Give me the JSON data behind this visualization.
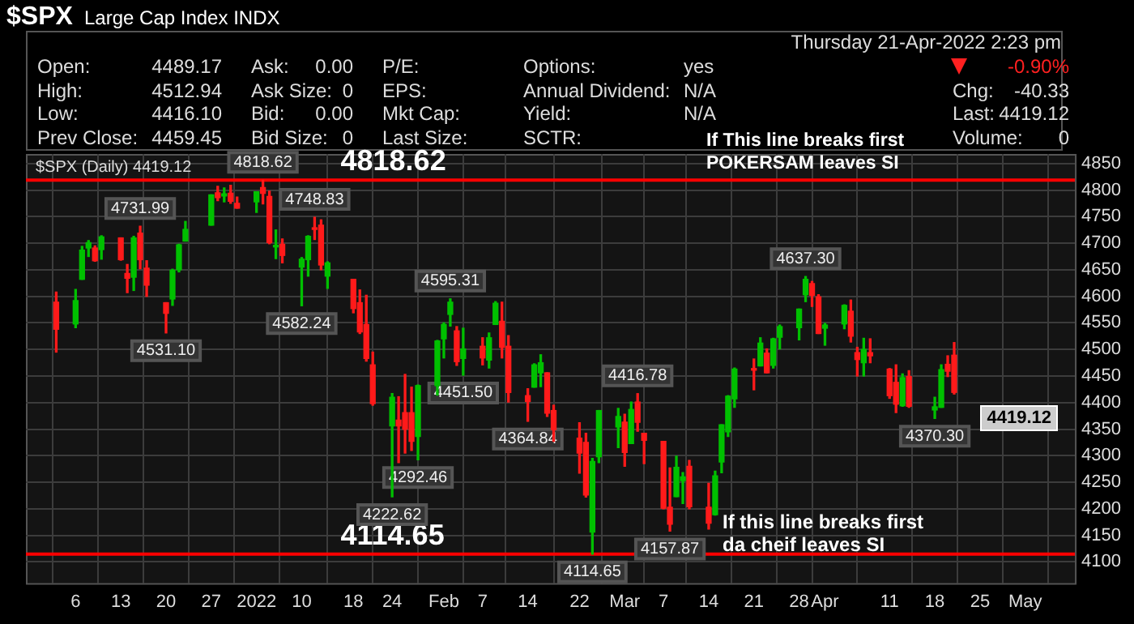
{
  "chart_data": {
    "type": "candlestick",
    "title": "$SPX",
    "subtitle": "Large Cap Index INDX",
    "x": [
      "2021-12-03",
      "2021-12-06",
      "2021-12-07",
      "2021-12-08",
      "2021-12-09",
      "2021-12-10",
      "2021-12-13",
      "2021-12-14",
      "2021-12-15",
      "2021-12-16",
      "2021-12-17",
      "2021-12-20",
      "2021-12-21",
      "2021-12-22",
      "2021-12-23",
      "2021-12-27",
      "2021-12-28",
      "2021-12-29",
      "2021-12-30",
      "2021-12-31",
      "2022-01-03",
      "2022-01-04",
      "2022-01-05",
      "2022-01-06",
      "2022-01-07",
      "2022-01-10",
      "2022-01-11",
      "2022-01-12",
      "2022-01-13",
      "2022-01-14",
      "2022-01-18",
      "2022-01-19",
      "2022-01-20",
      "2022-01-21",
      "2022-01-24",
      "2022-01-25",
      "2022-01-26",
      "2022-01-27",
      "2022-01-28",
      "2022-01-31",
      "2022-02-01",
      "2022-02-02",
      "2022-02-03",
      "2022-02-04",
      "2022-02-07",
      "2022-02-08",
      "2022-02-09",
      "2022-02-10",
      "2022-02-11",
      "2022-02-14",
      "2022-02-15",
      "2022-02-16",
      "2022-02-17",
      "2022-02-18",
      "2022-02-22",
      "2022-02-23",
      "2022-02-24",
      "2022-02-25",
      "2022-02-28",
      "2022-03-01",
      "2022-03-02",
      "2022-03-03",
      "2022-03-04",
      "2022-03-07",
      "2022-03-08",
      "2022-03-09",
      "2022-03-10",
      "2022-03-11",
      "2022-03-14",
      "2022-03-15",
      "2022-03-16",
      "2022-03-17",
      "2022-03-18",
      "2022-03-21",
      "2022-03-22",
      "2022-03-23",
      "2022-03-24",
      "2022-03-25",
      "2022-03-28",
      "2022-03-29",
      "2022-03-30",
      "2022-03-31",
      "2022-04-01",
      "2022-04-04",
      "2022-04-05",
      "2022-04-06",
      "2022-04-07",
      "2022-04-08",
      "2022-04-11",
      "2022-04-12",
      "2022-04-13",
      "2022-04-14",
      "2022-04-18",
      "2022-04-19",
      "2022-04-20",
      "2022-04-21"
    ],
    "ohlc": [
      [
        4589,
        4608,
        4495,
        4538
      ],
      [
        4548,
        4613,
        4541,
        4592
      ],
      [
        4632,
        4694,
        4632,
        4687
      ],
      [
        4691,
        4705,
        4675,
        4701
      ],
      [
        4691,
        4695,
        4666,
        4667
      ],
      [
        4688,
        4714,
        4670,
        4712
      ],
      [
        4710,
        4710,
        4668,
        4669
      ],
      [
        4643,
        4660,
        4607,
        4634
      ],
      [
        4636,
        4713,
        4611,
        4710
      ],
      [
        4719,
        4731.99,
        4652,
        4669
      ],
      [
        4653,
        4667,
        4600,
        4621
      ],
      [
        4588,
        4588,
        4531.1,
        4568
      ],
      [
        4595,
        4651,
        4583,
        4649
      ],
      [
        4650,
        4698,
        4646,
        4697
      ],
      [
        4704,
        4741,
        4704,
        4726
      ],
      [
        4734,
        4791,
        4734,
        4791
      ],
      [
        4795,
        4807,
        4780,
        4786
      ],
      [
        4789,
        4804,
        4778,
        4793
      ],
      [
        4794,
        4809,
        4775,
        4779
      ],
      [
        4775,
        4787,
        4766,
        4766
      ],
      [
        4778,
        4797,
        4758,
        4797
      ],
      [
        4805,
        4818.62,
        4774,
        4794
      ],
      [
        4788,
        4798,
        4699,
        4701
      ],
      [
        4693,
        4725,
        4671,
        4696
      ],
      [
        4698,
        4708,
        4663,
        4677
      ],
      [
        4655,
        4673,
        4582.24,
        4670
      ],
      [
        4669,
        4714,
        4638,
        4713
      ],
      [
        4729,
        4748.83,
        4707,
        4726
      ],
      [
        4734,
        4744,
        4650,
        4659
      ],
      [
        4638,
        4665,
        4615,
        4663
      ],
      [
        4632,
        4632,
        4569,
        4577
      ],
      [
        4588,
        4612,
        4530,
        4533
      ],
      [
        4547,
        4602,
        4478,
        4483
      ],
      [
        4471,
        4495,
        4395,
        4398
      ],
      [
        4356,
        4417,
        4222.62,
        4410
      ],
      [
        4367,
        4411,
        4287,
        4356
      ],
      [
        4381,
        4453,
        4305,
        4350
      ],
      [
        4381,
        4429,
        4310,
        4327
      ],
      [
        4336,
        4433,
        4292.46,
        4432
      ],
      [
        4432,
        4517,
        4414,
        4516
      ],
      [
        4520,
        4550,
        4484,
        4547
      ],
      [
        4566,
        4595.31,
        4544,
        4589
      ],
      [
        4535,
        4543,
        4470,
        4477
      ],
      [
        4483,
        4540,
        4451.5,
        4501
      ],
      [
        4506,
        4522,
        4471,
        4484
      ],
      [
        4480,
        4531,
        4465,
        4522
      ],
      [
        4547,
        4590,
        4547,
        4587
      ],
      [
        4553,
        4589,
        4484,
        4504
      ],
      [
        4506,
        4526,
        4401,
        4419
      ],
      [
        4413,
        4426,
        4364.84,
        4402
      ],
      [
        4429,
        4473,
        4429,
        4471
      ],
      [
        4456,
        4490,
        4430,
        4475
      ],
      [
        4456,
        4456,
        4374,
        4380
      ],
      [
        4385,
        4395,
        4327,
        4349
      ],
      [
        4333,
        4362,
        4267,
        4305
      ],
      [
        4325,
        4342,
        4222,
        4226
      ],
      [
        4156,
        4295,
        4114.65,
        4289
      ],
      [
        4298,
        4385,
        4287,
        4385
      ],
      [
        4354,
        4389,
        4315,
        4374
      ],
      [
        4363,
        4378,
        4280,
        4306
      ],
      [
        4323,
        4401,
        4323,
        4387
      ],
      [
        4401,
        4416.78,
        4346,
        4363
      ],
      [
        4342,
        4342,
        4285,
        4329
      ],
      [
        4327,
        4327,
        4200,
        4201
      ],
      [
        4203,
        4277,
        4157.87,
        4171
      ],
      [
        4223,
        4299,
        4223,
        4278
      ],
      [
        4253,
        4268,
        4210,
        4260
      ],
      [
        4280,
        4291,
        4200,
        4204
      ],
      [
        4203,
        4248,
        4162,
        4173
      ],
      [
        4189,
        4271,
        4188,
        4262
      ],
      [
        4288,
        4358,
        4268,
        4358
      ],
      [
        4345,
        4413,
        4336,
        4412
      ],
      [
        4407,
        4465,
        4391,
        4463
      ],
      [
        4462,
        4482,
        4424,
        4461
      ],
      [
        4469,
        4522,
        4469,
        4512
      ],
      [
        4493,
        4501,
        4456,
        4456
      ],
      [
        4470,
        4521,
        4465,
        4520
      ],
      [
        4523,
        4546,
        4501,
        4543
      ],
      [
        4541,
        4576,
        4518,
        4576
      ],
      [
        4603,
        4637.3,
        4590,
        4632
      ],
      [
        4624,
        4628,
        4581,
        4602
      ],
      [
        4599,
        4603,
        4530,
        4530
      ],
      [
        4540,
        4549,
        4508,
        4546
      ],
      [
        4548,
        4584,
        4539,
        4583
      ],
      [
        4572,
        4593,
        4514,
        4525
      ],
      [
        4494,
        4504,
        4450,
        4481
      ],
      [
        4475,
        4521,
        4450,
        4500
      ],
      [
        4494,
        4520,
        4475,
        4488
      ],
      [
        4463,
        4464,
        4408,
        4413
      ],
      [
        4438,
        4471,
        4381,
        4397
      ],
      [
        4394,
        4454,
        4393,
        4447
      ],
      [
        4449,
        4460,
        4391,
        4393
      ],
      [
        4386,
        4410,
        4370.3,
        4392
      ],
      [
        4391,
        4471,
        4391,
        4462
      ],
      [
        4472,
        4488,
        4449,
        4459
      ],
      [
        4489.17,
        4512.94,
        4416.1,
        4419.12
      ]
    ],
    "colors": [
      "#ff1a1a",
      "#00c000",
      "#00c000",
      "#00c000",
      "#ff1a1a",
      "#00c000",
      "#ff1a1a",
      "#ff1a1a",
      "#00c000",
      "#ff1a1a",
      "#ff1a1a",
      "#ff1a1a",
      "#00c000",
      "#00c000",
      "#00c000",
      "#00c000",
      "#ff1a1a",
      "#00c000",
      "#ff1a1a",
      "#ff1a1a",
      "#00c000",
      "#ff1a1a",
      "#ff1a1a",
      "#00c000",
      "#ff1a1a",
      "#00c000",
      "#00c000",
      "#ff1a1a",
      "#ff1a1a",
      "#00c000",
      "#ff1a1a",
      "#ff1a1a",
      "#ff1a1a",
      "#ff1a1a",
      "#00c000",
      "#ff1a1a",
      "#ff1a1a",
      "#ff1a1a",
      "#00c000",
      "#00c000",
      "#00c000",
      "#00c000",
      "#ff1a1a",
      "#00c000",
      "#ff1a1a",
      "#00c000",
      "#00c000",
      "#ff1a1a",
      "#ff1a1a",
      "#ff1a1a",
      "#00c000",
      "#00c000",
      "#ff1a1a",
      "#ff1a1a",
      "#ff1a1a",
      "#ff1a1a",
      "#00c000",
      "#00c000",
      "#00c000",
      "#ff1a1a",
      "#00c000",
      "#ff1a1a",
      "#ff1a1a",
      "#ff1a1a",
      "#ff1a1a",
      "#00c000",
      "#00c000",
      "#ff1a1a",
      "#ff1a1a",
      "#00c000",
      "#00c000",
      "#00c000",
      "#00c000",
      "#ff1a1a",
      "#00c000",
      "#ff1a1a",
      "#00c000",
      "#00c000",
      "#00c000",
      "#00c000",
      "#ff1a1a",
      "#ff1a1a",
      "#00c000",
      "#00c000",
      "#ff1a1a",
      "#ff1a1a",
      "#00c000",
      "#ff1a1a",
      "#ff1a1a",
      "#ff1a1a",
      "#00c000",
      "#ff1a1a",
      "#00c000",
      "#00c000",
      "#ff1a1a",
      "#ff1a1a"
    ],
    "xlim": [
      "2021-12-02",
      "2022-05-06"
    ],
    "xticks": [
      {
        "value": "2021-12-06",
        "label": "6"
      },
      {
        "value": "2021-12-13",
        "label": "13"
      },
      {
        "value": "2021-12-20",
        "label": "20"
      },
      {
        "value": "2021-12-27",
        "label": "27"
      },
      {
        "value": "2022-01-03",
        "label": "2022"
      },
      {
        "value": "2022-01-10",
        "label": "10"
      },
      {
        "value": "2022-01-18",
        "label": "18"
      },
      {
        "value": "2022-01-24",
        "label": "24"
      },
      {
        "value": "2022-02-01",
        "label": "Feb"
      },
      {
        "value": "2022-02-07",
        "label": "7"
      },
      {
        "value": "2022-02-14",
        "label": "14"
      },
      {
        "value": "2022-02-22",
        "label": "22"
      },
      {
        "value": "2022-03-01",
        "label": "Mar"
      },
      {
        "value": "2022-03-07",
        "label": "7"
      },
      {
        "value": "2022-03-14",
        "label": "14"
      },
      {
        "value": "2022-03-21",
        "label": "21"
      },
      {
        "value": "2022-03-28",
        "label": "28"
      },
      {
        "value": "2022-04-01",
        "label": "Apr"
      },
      {
        "value": "2022-04-11",
        "label": "11"
      },
      {
        "value": "2022-04-18",
        "label": "18"
      },
      {
        "value": "2022-04-25",
        "label": "25"
      },
      {
        "value": "2022-05-02",
        "label": "May"
      }
    ],
    "ylim": [
      4060,
      4868
    ],
    "yticks": [
      4100,
      4150,
      4200,
      4250,
      4300,
      4350,
      4400,
      4450,
      4500,
      4550,
      4600,
      4650,
      4700,
      4750,
      4800,
      4850
    ],
    "grid": true,
    "ref_lines": [
      {
        "axis": "y",
        "value": 4818.62,
        "label": "4818.62",
        "color": "#ff0000"
      },
      {
        "axis": "y",
        "value": 4114.65,
        "label": "4114.65",
        "color": "#ff0000"
      }
    ],
    "annotations": [
      "Open:",
      "4489.17",
      "High:",
      "4512.94",
      "Low:",
      "4416.10",
      "Prev Close:",
      "4459.45",
      "Ask:",
      "0.00",
      "Ask Size:",
      "0",
      "Bid:",
      "0.00",
      "Bid Size:",
      "0",
      "P/E:",
      "EPS:",
      "Mkt Cap:",
      "Last Size:",
      "Options:",
      "yes",
      "Annual Dividend:",
      "N/A",
      "Yield:",
      "N/A",
      "SCTR:",
      "Thursday  21-Apr-2022  2:23 pm",
      "-0.90%",
      "Chg:",
      "-40.33",
      "Last:",
      "4419.12",
      "Volume:",
      "0",
      "$SPX (Daily) 4419.12",
      "If This line breaks first",
      "POKERSAM leaves SI",
      "If this line breaks first",
      "da cheif leaves SI",
      "4419.12",
      {
        "text": "4731.99",
        "x": "2021-12-16",
        "y": 4731.99
      },
      {
        "text": "4531.10",
        "x": "2021-12-20",
        "y": 4531.1
      },
      {
        "text": "4818.62",
        "x": "2022-01-04",
        "y": 4818.62
      },
      {
        "text": "4582.24",
        "x": "2022-01-10",
        "y": 4582.24
      },
      {
        "text": "4748.83",
        "x": "2022-01-12",
        "y": 4748.83
      },
      {
        "text": "4222.62",
        "x": "2022-01-24",
        "y": 4222.62
      },
      {
        "text": "4292.46",
        "x": "2022-01-28",
        "y": 4292.46
      },
      {
        "text": "4595.31",
        "x": "2022-02-02",
        "y": 4595.31
      },
      {
        "text": "4451.50",
        "x": "2022-02-04",
        "y": 4451.5
      },
      {
        "text": "4364.84",
        "x": "2022-02-14",
        "y": 4364.84
      },
      {
        "text": "4114.65",
        "x": "2022-02-24",
        "y": 4114.65
      },
      {
        "text": "4416.78",
        "x": "2022-03-03",
        "y": 4416.78
      },
      {
        "text": "4157.87",
        "x": "2022-03-08",
        "y": 4157.87
      },
      {
        "text": "4637.30",
        "x": "2022-03-29",
        "y": 4637.3
      },
      {
        "text": "4370.30",
        "x": "2022-04-18",
        "y": 4370.3
      }
    ]
  }
}
